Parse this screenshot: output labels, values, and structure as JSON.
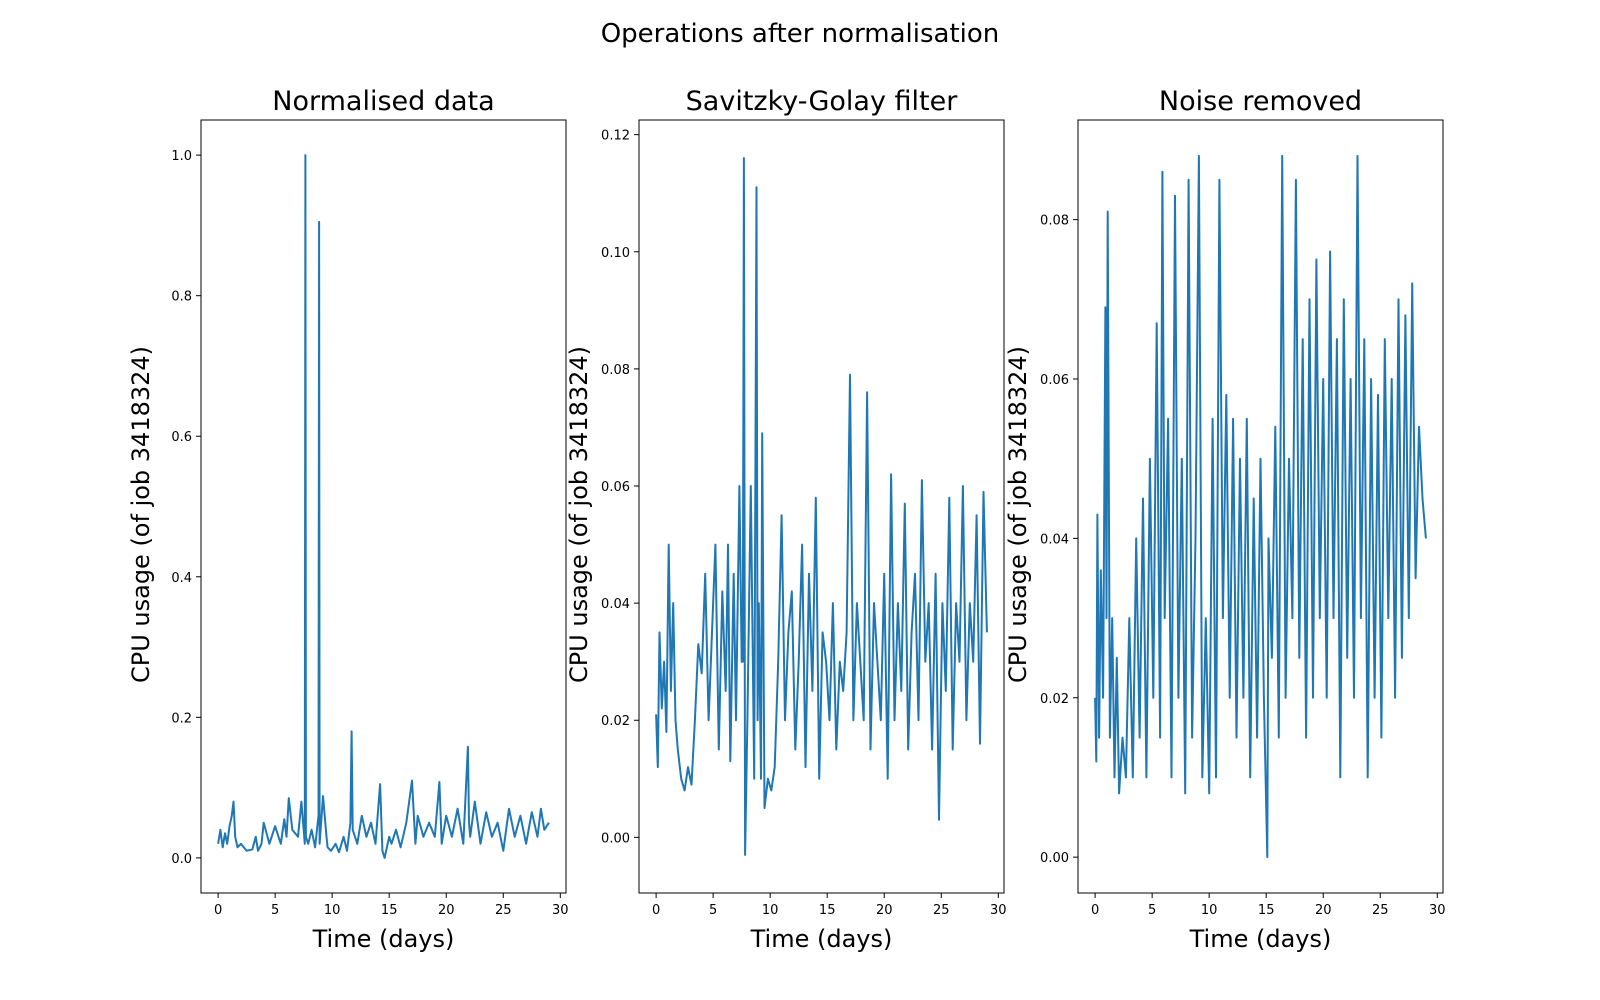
{
  "suptitle": "Operations after normalisation",
  "line_color": "#1f77b4",
  "chart_data": [
    {
      "type": "line",
      "title": "Normalised data",
      "xlabel": "Time (days)",
      "ylabel": "CPU usage (of job 3418324)",
      "xlim": [
        -1.5,
        30.5
      ],
      "ylim": [
        -0.05,
        1.05
      ],
      "xticks": [
        0,
        5,
        10,
        15,
        20,
        25,
        30
      ],
      "xtick_labels": [
        "0",
        "5",
        "10",
        "15",
        "20",
        "25",
        "30"
      ],
      "yticks": [
        0.0,
        0.2,
        0.4,
        0.6,
        0.8,
        1.0
      ],
      "ytick_labels": [
        "0.0",
        "0.2",
        "0.4",
        "0.6",
        "0.8",
        "1.0"
      ],
      "series": [
        {
          "x": [
            0,
            0.2,
            0.4,
            0.6,
            0.8,
            1.0,
            1.2,
            1.35,
            1.5,
            1.7,
            2.0,
            2.5,
            3.0,
            3.3,
            3.5,
            3.8,
            4.0,
            4.5,
            5.0,
            5.5,
            5.8,
            6.0,
            6.2,
            6.5,
            7.0,
            7.3,
            7.6,
            7.65,
            7.7,
            7.9,
            8.2,
            8.5,
            8.8,
            8.85,
            8.9,
            9.2,
            9.5,
            9.6,
            9.9,
            10.3,
            10.6,
            11.0,
            11.3,
            11.6,
            11.7,
            11.8,
            12.2,
            12.6,
            13.0,
            13.4,
            13.8,
            14.2,
            14.4,
            14.6,
            15.0,
            15.2,
            15.6,
            16.0,
            16.5,
            17.0,
            17.3,
            17.5,
            18.0,
            18.5,
            19.0,
            19.4,
            19.6,
            20.0,
            20.5,
            21.0,
            21.5,
            21.9,
            22.0,
            22.1,
            22.5,
            23.0,
            23.5,
            24.0,
            24.5,
            25.0,
            25.5,
            26.0,
            26.5,
            27.0,
            27.5,
            28.0,
            28.3,
            28.6,
            29.0
          ],
          "y": [
            0.02,
            0.04,
            0.015,
            0.035,
            0.02,
            0.045,
            0.06,
            0.08,
            0.03,
            0.015,
            0.02,
            0.01,
            0.012,
            0.03,
            0.01,
            0.02,
            0.05,
            0.02,
            0.045,
            0.02,
            0.055,
            0.03,
            0.085,
            0.04,
            0.03,
            0.08,
            0.02,
            1.0,
            0.03,
            0.02,
            0.04,
            0.015,
            0.06,
            0.905,
            0.02,
            0.088,
            0.03,
            0.015,
            0.01,
            0.02,
            0.008,
            0.03,
            0.01,
            0.05,
            0.18,
            0.04,
            0.02,
            0.06,
            0.03,
            0.05,
            0.02,
            0.105,
            0.01,
            0.0,
            0.03,
            0.02,
            0.04,
            0.015,
            0.05,
            0.11,
            0.02,
            0.06,
            0.03,
            0.05,
            0.03,
            0.108,
            0.02,
            0.06,
            0.03,
            0.07,
            0.02,
            0.158,
            0.05,
            0.03,
            0.08,
            0.02,
            0.065,
            0.03,
            0.05,
            0.01,
            0.07,
            0.03,
            0.06,
            0.02,
            0.065,
            0.03,
            0.07,
            0.04,
            0.05
          ]
        }
      ]
    },
    {
      "type": "line",
      "title": "Savitzky-Golay filter",
      "xlabel": "Time (days)",
      "ylabel": "CPU usage (of job 3418324)",
      "xlim": [
        -1.5,
        30.5
      ],
      "ylim": [
        -0.0095,
        0.1225
      ],
      "xticks": [
        0,
        5,
        10,
        15,
        20,
        25,
        30
      ],
      "xtick_labels": [
        "0",
        "5",
        "10",
        "15",
        "20",
        "25",
        "30"
      ],
      "yticks": [
        0.0,
        0.02,
        0.04,
        0.06,
        0.08,
        0.1,
        0.12
      ],
      "ytick_labels": [
        "0.00",
        "0.02",
        "0.04",
        "0.06",
        "0.08",
        "0.10",
        "0.12"
      ],
      "series": [
        {
          "x": [
            0,
            0.15,
            0.3,
            0.5,
            0.7,
            0.9,
            1.1,
            1.3,
            1.5,
            1.7,
            1.9,
            2.2,
            2.5,
            2.8,
            3.1,
            3.4,
            3.7,
            4.0,
            4.3,
            4.6,
            4.9,
            5.2,
            5.5,
            5.8,
            6.1,
            6.3,
            6.5,
            6.8,
            7.0,
            7.3,
            7.5,
            7.6,
            7.7,
            7.8,
            8.0,
            8.3,
            8.6,
            8.8,
            8.9,
            9.0,
            9.2,
            9.3,
            9.5,
            9.8,
            10.1,
            10.4,
            10.7,
            11.0,
            11.3,
            11.6,
            11.9,
            12.2,
            12.5,
            12.8,
            13.1,
            13.4,
            13.7,
            14.0,
            14.3,
            14.6,
            14.9,
            15.2,
            15.5,
            15.8,
            16.1,
            16.4,
            16.7,
            17.0,
            17.3,
            17.6,
            17.9,
            18.2,
            18.5,
            18.8,
            19.1,
            19.4,
            19.7,
            20.0,
            20.3,
            20.6,
            20.9,
            21.2,
            21.5,
            21.8,
            22.1,
            22.4,
            22.7,
            23.0,
            23.3,
            23.6,
            23.9,
            24.2,
            24.5,
            24.8,
            25.1,
            25.4,
            25.7,
            26.0,
            26.3,
            26.6,
            26.9,
            27.2,
            27.5,
            27.8,
            28.1,
            28.4,
            28.7,
            29.0
          ],
          "y": [
            0.021,
            0.012,
            0.035,
            0.022,
            0.03,
            0.018,
            0.05,
            0.025,
            0.04,
            0.02,
            0.015,
            0.01,
            0.008,
            0.012,
            0.009,
            0.02,
            0.033,
            0.028,
            0.045,
            0.02,
            0.035,
            0.05,
            0.015,
            0.042,
            0.025,
            0.05,
            0.013,
            0.045,
            0.02,
            0.06,
            0.03,
            0.03,
            0.116,
            -0.003,
            0.02,
            0.06,
            0.01,
            0.111,
            0.02,
            0.04,
            0.01,
            0.069,
            0.005,
            0.01,
            0.008,
            0.012,
            0.03,
            0.055,
            0.02,
            0.035,
            0.042,
            0.015,
            0.03,
            0.05,
            0.012,
            0.045,
            0.025,
            0.058,
            0.01,
            0.035,
            0.03,
            0.02,
            0.04,
            0.015,
            0.03,
            0.025,
            0.035,
            0.079,
            0.02,
            0.04,
            0.03,
            0.02,
            0.076,
            0.015,
            0.04,
            0.03,
            0.02,
            0.045,
            0.01,
            0.062,
            0.02,
            0.04,
            0.025,
            0.057,
            0.015,
            0.035,
            0.045,
            0.02,
            0.061,
            0.03,
            0.04,
            0.015,
            0.045,
            0.003,
            0.04,
            0.025,
            0.058,
            0.015,
            0.04,
            0.03,
            0.06,
            0.02,
            0.04,
            0.03,
            0.055,
            0.016,
            0.059,
            0.035
          ]
        }
      ]
    },
    {
      "type": "line",
      "title": "Noise removed",
      "xlabel": "Time (days)",
      "ylabel": "CPU usage (of job 3418324)",
      "xlim": [
        -1.5,
        30.5
      ],
      "ylim": [
        -0.0045,
        0.0925
      ],
      "xticks": [
        0,
        5,
        10,
        15,
        20,
        25,
        30
      ],
      "xtick_labels": [
        "0",
        "5",
        "10",
        "15",
        "20",
        "25",
        "30"
      ],
      "yticks": [
        0.0,
        0.02,
        0.04,
        0.06,
        0.08
      ],
      "ytick_labels": [
        "0.00",
        "0.02",
        "0.04",
        "0.06",
        "0.08"
      ],
      "series": [
        {
          "x": [
            0,
            0.1,
            0.2,
            0.35,
            0.5,
            0.7,
            0.9,
            1.0,
            1.1,
            1.3,
            1.5,
            1.7,
            1.9,
            2.1,
            2.4,
            2.7,
            3.0,
            3.3,
            3.6,
            3.9,
            4.2,
            4.5,
            4.8,
            5.1,
            5.4,
            5.7,
            5.9,
            6.1,
            6.4,
            6.7,
            7.0,
            7.3,
            7.6,
            7.9,
            8.2,
            8.5,
            8.8,
            9.1,
            9.4,
            9.7,
            10.0,
            10.3,
            10.6,
            10.9,
            11.2,
            11.5,
            11.8,
            12.1,
            12.4,
            12.7,
            13.0,
            13.3,
            13.6,
            13.9,
            14.2,
            14.5,
            14.8,
            15.1,
            15.2,
            15.5,
            15.8,
            16.1,
            16.4,
            16.7,
            17.0,
            17.3,
            17.6,
            17.9,
            18.2,
            18.5,
            18.8,
            19.1,
            19.4,
            19.7,
            20.0,
            20.3,
            20.6,
            20.9,
            21.2,
            21.5,
            21.8,
            22.1,
            22.4,
            22.7,
            23.0,
            23.3,
            23.6,
            23.9,
            24.2,
            24.5,
            24.8,
            25.1,
            25.4,
            25.7,
            26.0,
            26.3,
            26.6,
            26.9,
            27.2,
            27.5,
            27.8,
            28.1,
            28.4,
            28.7,
            29.0
          ],
          "y": [
            0.02,
            0.012,
            0.043,
            0.015,
            0.036,
            0.02,
            0.069,
            0.03,
            0.081,
            0.015,
            0.03,
            0.01,
            0.025,
            0.008,
            0.015,
            0.01,
            0.03,
            0.01,
            0.04,
            0.015,
            0.045,
            0.01,
            0.05,
            0.02,
            0.067,
            0.015,
            0.086,
            0.03,
            0.055,
            0.01,
            0.083,
            0.02,
            0.05,
            0.008,
            0.085,
            0.015,
            0.04,
            0.088,
            0.01,
            0.03,
            0.008,
            0.055,
            0.01,
            0.085,
            0.03,
            0.058,
            0.02,
            0.055,
            0.015,
            0.05,
            0.02,
            0.055,
            0.01,
            0.045,
            0.015,
            0.05,
            0.02,
            0.0,
            0.04,
            0.025,
            0.054,
            0.015,
            0.088,
            0.02,
            0.05,
            0.03,
            0.085,
            0.025,
            0.065,
            0.015,
            0.07,
            0.02,
            0.075,
            0.03,
            0.06,
            0.02,
            0.076,
            0.03,
            0.065,
            0.01,
            0.07,
            0.025,
            0.06,
            0.02,
            0.088,
            0.03,
            0.065,
            0.01,
            0.06,
            0.02,
            0.058,
            0.015,
            0.065,
            0.03,
            0.06,
            0.02,
            0.07,
            0.025,
            0.068,
            0.03,
            0.072,
            0.035,
            0.054,
            0.045,
            0.04
          ]
        }
      ]
    }
  ]
}
